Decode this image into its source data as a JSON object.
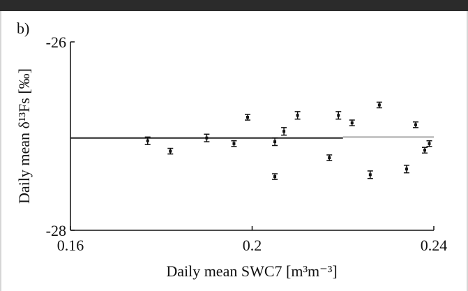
{
  "chart_data": {
    "type": "scatter",
    "panel_label": "b)",
    "title": "",
    "xlabel": "Daily mean SWC7 [m³m⁻³]",
    "ylabel": "Daily mean δ¹³Fs [‰]",
    "xlim": [
      0.16,
      0.24
    ],
    "ylim": [
      -28,
      -26
    ],
    "x_ticks": [
      0.16,
      0.2,
      0.24
    ],
    "x_tick_labels": [
      "0.16",
      "0.2",
      "0.24"
    ],
    "y_ticks": [
      -26,
      -28
    ],
    "y_tick_labels": [
      "-26",
      "-28"
    ],
    "grid": false,
    "points": [
      {
        "x": 0.177,
        "y": -27.05,
        "err": 0.04
      },
      {
        "x": 0.182,
        "y": -27.16,
        "err": 0.03
      },
      {
        "x": 0.19,
        "y": -27.02,
        "err": 0.04
      },
      {
        "x": 0.196,
        "y": -27.08,
        "err": 0.03
      },
      {
        "x": 0.199,
        "y": -26.8,
        "err": 0.03
      },
      {
        "x": 0.205,
        "y": -27.43,
        "err": 0.03
      },
      {
        "x": 0.205,
        "y": -27.06,
        "err": 0.04
      },
      {
        "x": 0.207,
        "y": -26.95,
        "err": 0.04
      },
      {
        "x": 0.21,
        "y": -26.78,
        "err": 0.04
      },
      {
        "x": 0.217,
        "y": -27.23,
        "err": 0.03
      },
      {
        "x": 0.219,
        "y": -26.78,
        "err": 0.04
      },
      {
        "x": 0.222,
        "y": -26.86,
        "err": 0.03
      },
      {
        "x": 0.226,
        "y": -27.41,
        "err": 0.04
      },
      {
        "x": 0.228,
        "y": -26.67,
        "err": 0.03
      },
      {
        "x": 0.234,
        "y": -27.35,
        "err": 0.04
      },
      {
        "x": 0.236,
        "y": -26.88,
        "err": 0.03
      },
      {
        "x": 0.238,
        "y": -27.15,
        "err": 0.03
      },
      {
        "x": 0.239,
        "y": -27.08,
        "err": 0.03
      }
    ],
    "fit_line": {
      "color": "#a9a9a9",
      "segments": [
        {
          "x": [
            0.16,
            0.22
          ],
          "y": [
            -27.02,
            -27.02
          ],
          "color": "#222222"
        },
        {
          "x": [
            0.22,
            0.24
          ],
          "y": [
            -27.01,
            -27.01
          ],
          "color": "#a9a9a9"
        }
      ]
    }
  }
}
